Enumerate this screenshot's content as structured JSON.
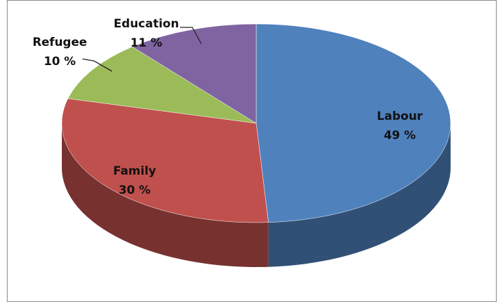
{
  "chart_data": {
    "type": "pie",
    "categories": [
      "Labour",
      "Family",
      "Refugee",
      "Education"
    ],
    "values": [
      49,
      30,
      10,
      11
    ],
    "value_labels": [
      "49 %",
      "30 %",
      "10 %",
      "11 %"
    ],
    "colors": [
      "#4f81bd",
      "#c0504d",
      "#9bbb59",
      "#8064a2"
    ]
  }
}
